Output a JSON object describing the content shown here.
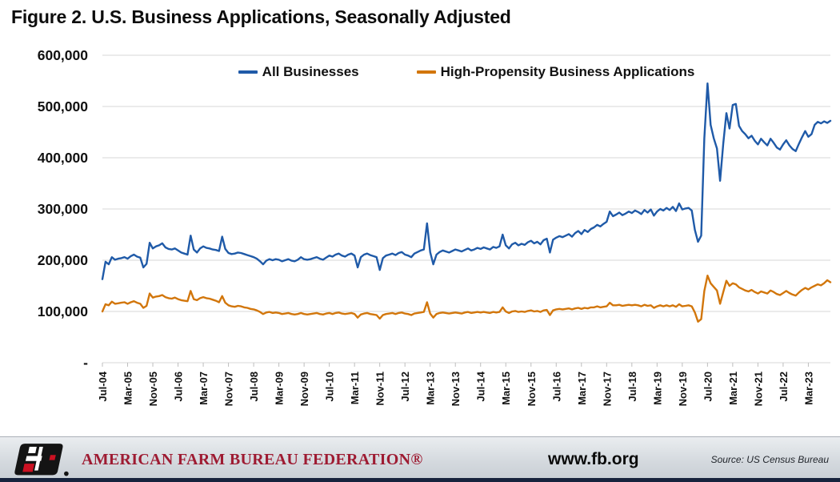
{
  "title": "Figure 2. U.S. Business Applications, Seasonally Adjusted",
  "footer": {
    "org_name": "AMERICAN FARM BUREAU FEDERATION®",
    "website": "www.fb.org",
    "source": "Source: US Census Bureau",
    "logo": "afbf-fb-logo",
    "brand_red": "#9e1b32"
  },
  "chart_data": {
    "type": "line",
    "title": "Figure 2. U.S. Business Applications, Seasonally Adjusted",
    "unit": "business applications per month, seasonally adjusted",
    "x_frequency": "monthly",
    "x_monthly_from": "2004-07",
    "x_monthly_to": "2023-10",
    "n_points": 232,
    "x_tick_interval_months": 8,
    "x_tick_labels": [
      "Jul-04",
      "Mar-05",
      "Nov-05",
      "Jul-06",
      "Mar-07",
      "Nov-07",
      "Jul-08",
      "Mar-09",
      "Nov-09",
      "Jul-10",
      "Mar-11",
      "Nov-11",
      "Jul-12",
      "Mar-13",
      "Nov-13",
      "Jul-14",
      "Mar-15",
      "Nov-15",
      "Jul-16",
      "Mar-17",
      "Nov-17",
      "Jul-18",
      "Mar-19",
      "Nov-19",
      "Jul-20",
      "Mar-21",
      "Nov-21",
      "Jul-22",
      "Mar-23"
    ],
    "y_tick_labels": [
      "600,000",
      "500,000",
      "400,000",
      "300,000",
      "200,000",
      "100,000",
      "-"
    ],
    "y_tick_step": 100000,
    "ylim": [
      0,
      600000
    ],
    "grid": "horizontal",
    "legend_position": "top-center",
    "series": [
      {
        "name": "All Businesses",
        "color": "#1f5aa8",
        "values": [
          163000,
          197000,
          192000,
          206000,
          201000,
          203000,
          204000,
          206000,
          203000,
          208000,
          211000,
          207000,
          205000,
          186000,
          193000,
          234000,
          223000,
          227000,
          229000,
          233000,
          225000,
          222000,
          221000,
          223000,
          219000,
          215000,
          213000,
          211000,
          248000,
          221000,
          215000,
          223000,
          227000,
          224000,
          223000,
          221000,
          220000,
          218000,
          246000,
          222000,
          214000,
          212000,
          213000,
          215000,
          214000,
          212000,
          210000,
          208000,
          206000,
          203000,
          198000,
          192000,
          199000,
          202000,
          200000,
          202000,
          201000,
          198000,
          200000,
          202000,
          199000,
          198000,
          201000,
          206000,
          202000,
          201000,
          202000,
          204000,
          206000,
          203000,
          201000,
          205000,
          209000,
          207000,
          211000,
          213000,
          209000,
          207000,
          211000,
          213000,
          209000,
          186000,
          206000,
          211000,
          213000,
          210000,
          208000,
          206000,
          181000,
          204000,
          209000,
          211000,
          213000,
          210000,
          214000,
          216000,
          211000,
          209000,
          206000,
          213000,
          216000,
          219000,
          221000,
          272000,
          216000,
          192000,
          211000,
          216000,
          219000,
          217000,
          215000,
          218000,
          221000,
          219000,
          217000,
          220000,
          223000,
          219000,
          221000,
          224000,
          222000,
          225000,
          223000,
          221000,
          226000,
          224000,
          227000,
          250000,
          229000,
          223000,
          231000,
          234000,
          229000,
          232000,
          230000,
          235000,
          238000,
          233000,
          236000,
          231000,
          239000,
          242000,
          215000,
          240000,
          244000,
          247000,
          245000,
          248000,
          251000,
          246000,
          253000,
          257000,
          251000,
          259000,
          255000,
          261000,
          264000,
          269000,
          266000,
          271000,
          275000,
          295000,
          286000,
          289000,
          293000,
          288000,
          291000,
          295000,
          292000,
          297000,
          294000,
          290000,
          298000,
          293000,
          299000,
          287000,
          295000,
          300000,
          297000,
          302000,
          298000,
          304000,
          296000,
          311000,
          299000,
          301000,
          302000,
          297000,
          259000,
          236000,
          248000,
          438000,
          545000,
          464000,
          438000,
          418000,
          355000,
          428000,
          487000,
          457000,
          503000,
          505000,
          462000,
          452000,
          446000,
          438000,
          443000,
          433000,
          426000,
          437000,
          430000,
          424000,
          437000,
          429000,
          420000,
          416000,
          426000,
          434000,
          424000,
          417000,
          413000,
          427000,
          440000,
          452000,
          441000,
          446000,
          464000,
          470000,
          467000,
          471000,
          468000,
          472000
        ]
      },
      {
        "name": "High-Propensity Business Applications",
        "color": "#d2760b",
        "values": [
          100000,
          114000,
          112000,
          119000,
          115000,
          116000,
          117000,
          118000,
          115000,
          118000,
          120000,
          117000,
          115000,
          107000,
          111000,
          135000,
          127000,
          129000,
          130000,
          132000,
          128000,
          126000,
          125000,
          127000,
          124000,
          122000,
          121000,
          120000,
          140000,
          124000,
          122000,
          126000,
          128000,
          126000,
          125000,
          123000,
          121000,
          118000,
          130000,
          117000,
          112000,
          110000,
          109000,
          111000,
          110000,
          108000,
          107000,
          105000,
          104000,
          102000,
          99000,
          95000,
          98000,
          99000,
          97000,
          98000,
          97000,
          95000,
          96000,
          97000,
          95000,
          94000,
          95000,
          97000,
          95000,
          94000,
          95000,
          96000,
          97000,
          95000,
          94000,
          96000,
          97000,
          95000,
          97000,
          98000,
          96000,
          95000,
          96000,
          97000,
          95000,
          88000,
          94000,
          96000,
          97000,
          95000,
          94000,
          93000,
          86000,
          93000,
          95000,
          96000,
          97000,
          95000,
          97000,
          98000,
          96000,
          95000,
          93000,
          96000,
          97000,
          98000,
          99000,
          118000,
          96000,
          88000,
          95000,
          97000,
          98000,
          97000,
          96000,
          97000,
          98000,
          97000,
          96000,
          98000,
          99000,
          97000,
          98000,
          99000,
          98000,
          99000,
          98000,
          97000,
          99000,
          98000,
          99000,
          108000,
          100000,
          97000,
          100000,
          101000,
          99000,
          100000,
          99000,
          101000,
          102000,
          100000,
          101000,
          99000,
          102000,
          103000,
          93000,
          102000,
          104000,
          105000,
          104000,
          105000,
          106000,
          104000,
          106000,
          107000,
          105000,
          107000,
          106000,
          108000,
          108000,
          110000,
          108000,
          109000,
          110000,
          117000,
          112000,
          112000,
          113000,
          111000,
          112000,
          113000,
          112000,
          113000,
          112000,
          110000,
          113000,
          111000,
          112000,
          107000,
          110000,
          112000,
          110000,
          112000,
          110000,
          112000,
          109000,
          114000,
          110000,
          111000,
          112000,
          110000,
          98000,
          80000,
          85000,
          140000,
          170000,
          155000,
          148000,
          141000,
          115000,
          138000,
          160000,
          150000,
          155000,
          153000,
          147000,
          144000,
          141000,
          139000,
          142000,
          138000,
          135000,
          139000,
          137000,
          135000,
          141000,
          138000,
          134000,
          132000,
          136000,
          140000,
          136000,
          133000,
          131000,
          137000,
          142000,
          146000,
          143000,
          147000,
          150000,
          153000,
          151000,
          155000,
          161000,
          157000
        ]
      }
    ]
  }
}
